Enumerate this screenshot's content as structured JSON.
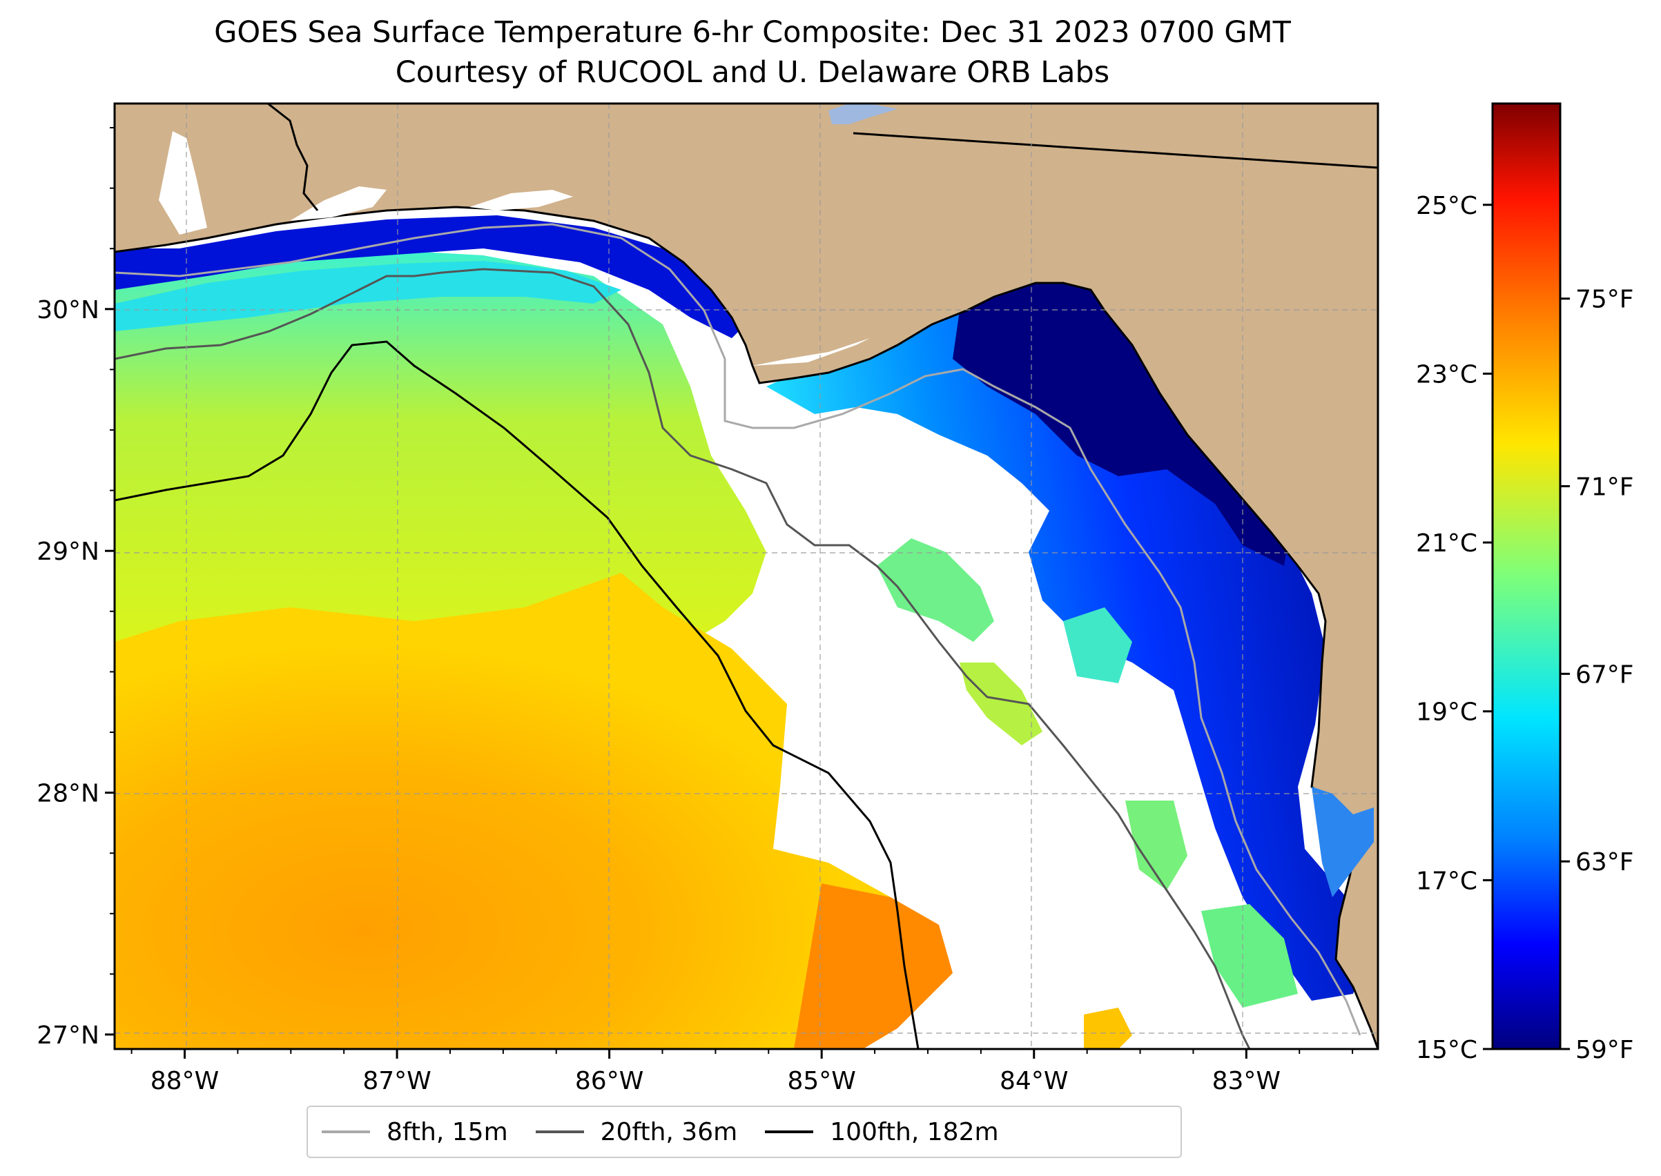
{
  "title": {
    "line1": "GOES Sea Surface Temperature 6-hr Composite: Dec 31 2023 0700 GMT",
    "line2": "Courtesy of RUCOOL and U. Delaware ORB Labs"
  },
  "map": {
    "lon_range": [
      -88.33,
      -82.38
    ],
    "lat_range": [
      26.94,
      30.85
    ],
    "x_ticks": [
      {
        "value": -88,
        "label": "88°W"
      },
      {
        "value": -87,
        "label": "87°W"
      },
      {
        "value": -86,
        "label": "86°W"
      },
      {
        "value": -85,
        "label": "85°W"
      },
      {
        "value": -84,
        "label": "84°W"
      },
      {
        "value": -83,
        "label": "83°W"
      }
    ],
    "y_ticks": [
      {
        "value": 30,
        "label": "30°N"
      },
      {
        "value": 29,
        "label": "29°N"
      },
      {
        "value": 28,
        "label": "28°N"
      },
      {
        "value": 27,
        "label": "27°N"
      }
    ],
    "colors": {
      "land": "#d0b28c",
      "cloud_no_data": "#ffffff",
      "lake": "#9fb8e0",
      "contour_8fth": "#a9a9a9",
      "contour_20fth": "#555555",
      "contour_100fth": "#000000"
    }
  },
  "colorbar": {
    "vmin_c": 15,
    "vmax_c": 26.2,
    "celsius_ticks": [
      {
        "value": 15,
        "label": "15°C"
      },
      {
        "value": 17,
        "label": "17°C"
      },
      {
        "value": 19,
        "label": "19°C"
      },
      {
        "value": 21,
        "label": "21°C"
      },
      {
        "value": 23,
        "label": "23°C"
      },
      {
        "value": 25,
        "label": "25°C"
      }
    ],
    "fahrenheit_ticks": [
      {
        "value": 59,
        "label": "59°F"
      },
      {
        "value": 63,
        "label": "63°F"
      },
      {
        "value": 67,
        "label": "67°F"
      },
      {
        "value": 71,
        "label": "71°F"
      },
      {
        "value": 75,
        "label": "75°F"
      }
    ]
  },
  "legend": {
    "items": [
      {
        "label": "8fth, 15m",
        "color": "#a9a9a9"
      },
      {
        "label": "20fth, 36m",
        "color": "#555555"
      },
      {
        "label": "100fth, 182m",
        "color": "#000000"
      }
    ]
  }
}
